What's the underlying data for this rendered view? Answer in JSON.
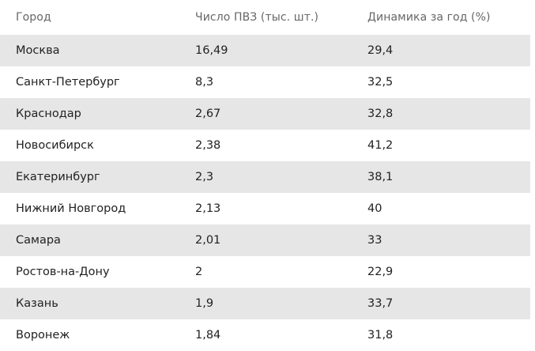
{
  "headers": {
    "city": "Город",
    "pvz_count": "Число ПВЗ (тыс. шт.)",
    "growth": "Динамика за год (%)"
  },
  "rows": [
    {
      "city": "Москва",
      "pvz_count": "16,49",
      "growth": "29,4"
    },
    {
      "city": "Санкт-Петербург",
      "pvz_count": "8,3",
      "growth": "32,5"
    },
    {
      "city": "Краснодар",
      "pvz_count": "2,67",
      "growth": "32,8"
    },
    {
      "city": "Новосибирск",
      "pvz_count": "2,38",
      "growth": "41,2"
    },
    {
      "city": "Екатеринбург",
      "pvz_count": "2,3",
      "growth": "38,1"
    },
    {
      "city": "Нижний Новгород",
      "pvz_count": "2,13",
      "growth": "40"
    },
    {
      "city": "Самара",
      "pvz_count": "2,01",
      "growth": "33"
    },
    {
      "city": "Ростов-на-Дону",
      "pvz_count": "2",
      "growth": "22,9"
    },
    {
      "city": "Казань",
      "pvz_count": "1,9",
      "growth": "33,7"
    },
    {
      "city": "Воронеж",
      "pvz_count": "1,84",
      "growth": "31,8"
    }
  ],
  "colors": {
    "shaded_row": "#e6e6e6",
    "header_text": "#666666",
    "body_text": "#222222"
  }
}
